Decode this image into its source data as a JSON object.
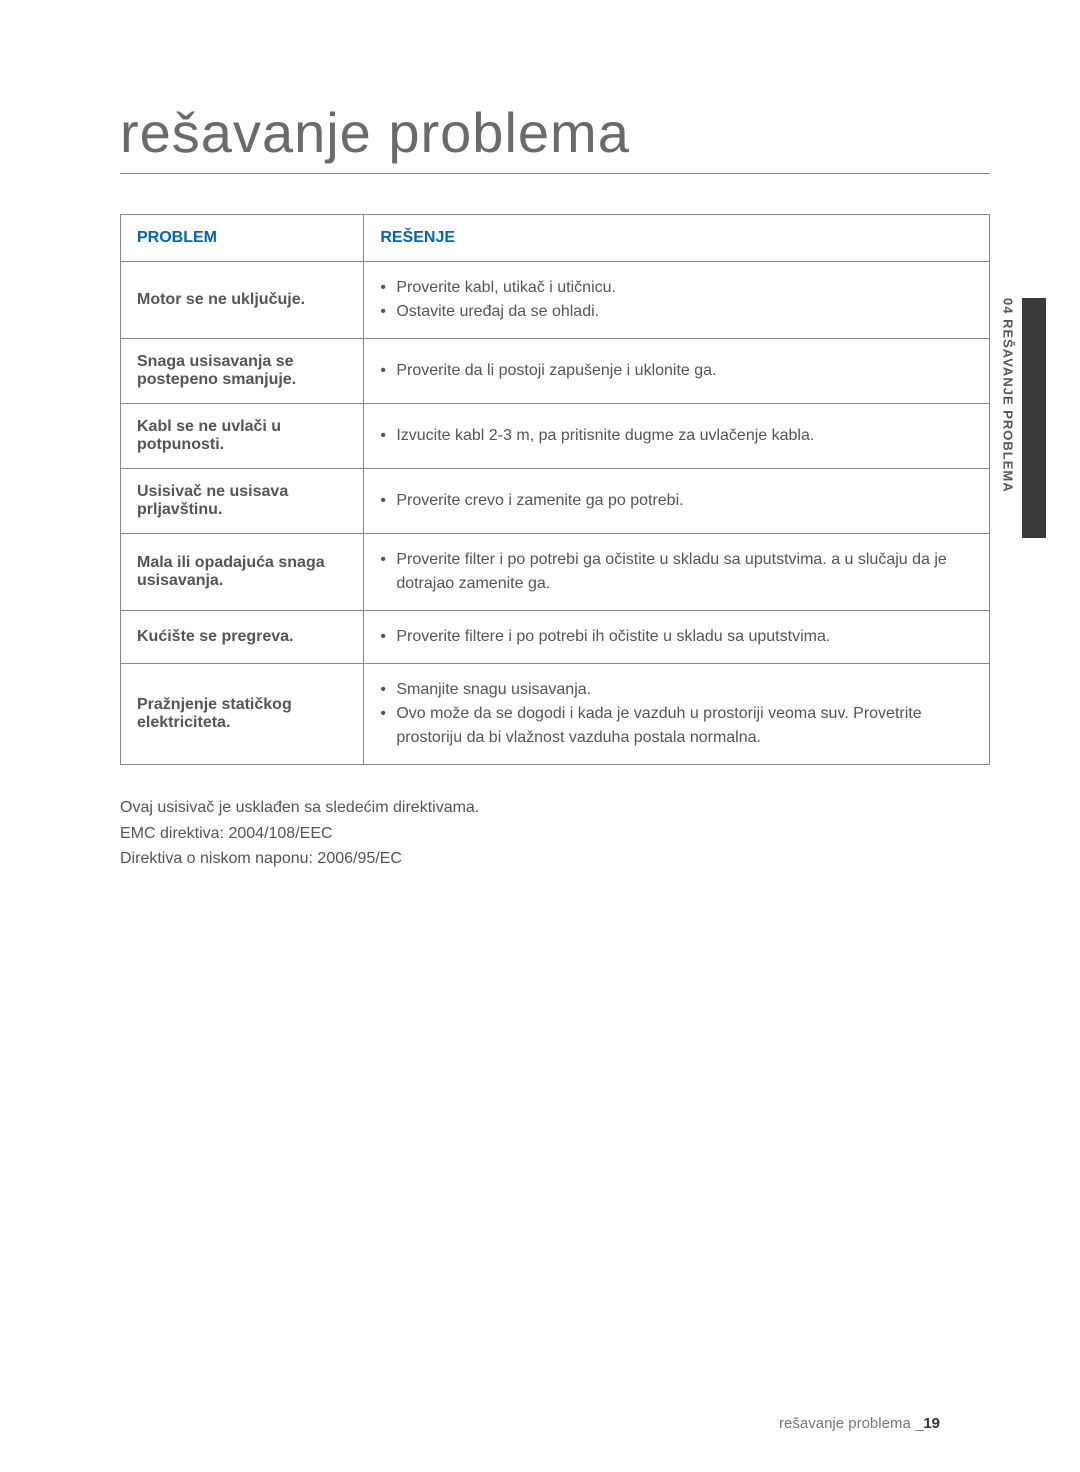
{
  "title": "rešavanje problema",
  "sidebar_label": "04  REŠAVANJE PROBLEMA",
  "sidebar_color": "#3a3a3a",
  "headers": {
    "problem": "PROBLEM",
    "solution": "REŠENJE"
  },
  "header_color": "#0066b3",
  "rows": [
    {
      "problem": "Motor se ne uključuje.",
      "solutions": [
        "Proverite kabl, utikač i utičnicu.",
        "Ostavite uređaj da se ohladi."
      ]
    },
    {
      "problem": "Snaga usisavanja se postepeno smanjuje.",
      "solutions": [
        "Proverite da li postoji zapušenje i uklonite ga."
      ]
    },
    {
      "problem": "Kabl se ne uvlači u potpunosti.",
      "solutions": [
        "Izvucite kabl 2-3 m, pa pritisnite dugme za uvlačenje kabla."
      ]
    },
    {
      "problem": "Usisivač ne usisava prljavštinu.",
      "solutions": [
        "Proverite crevo i zamenite ga po potrebi."
      ]
    },
    {
      "problem": "Mala ili opadajuća snaga usisavanja.",
      "solutions": [
        "Proverite filter i po potrebi ga očistite u skladu sa uputstvima. a u slučaju da je dotrajao zamenite ga."
      ]
    },
    {
      "problem": "Kućište se pregreva.",
      "solutions": [
        "Proverite filtere i po potrebi ih očistite u skladu sa uputstvima."
      ]
    },
    {
      "problem": "Pražnjenje statičkog elektriciteta.",
      "solutions": [
        "Smanjite snagu usisavanja.",
        "Ovo može da se dogodi i kada je vazduh u prostoriji veoma suv. Provetrite prostoriju da bi vlažnost vazduha postala normalna."
      ]
    }
  ],
  "footer_lines": [
    "Ovaj usisivač je usklađen sa sledećim direktivama.",
    "EMC direktiva: 2004/108/EEC",
    "Direktiva o niskom naponu: 2006/95/EC"
  ],
  "page_footer_text": "rešavanje problema _",
  "page_number": "19"
}
